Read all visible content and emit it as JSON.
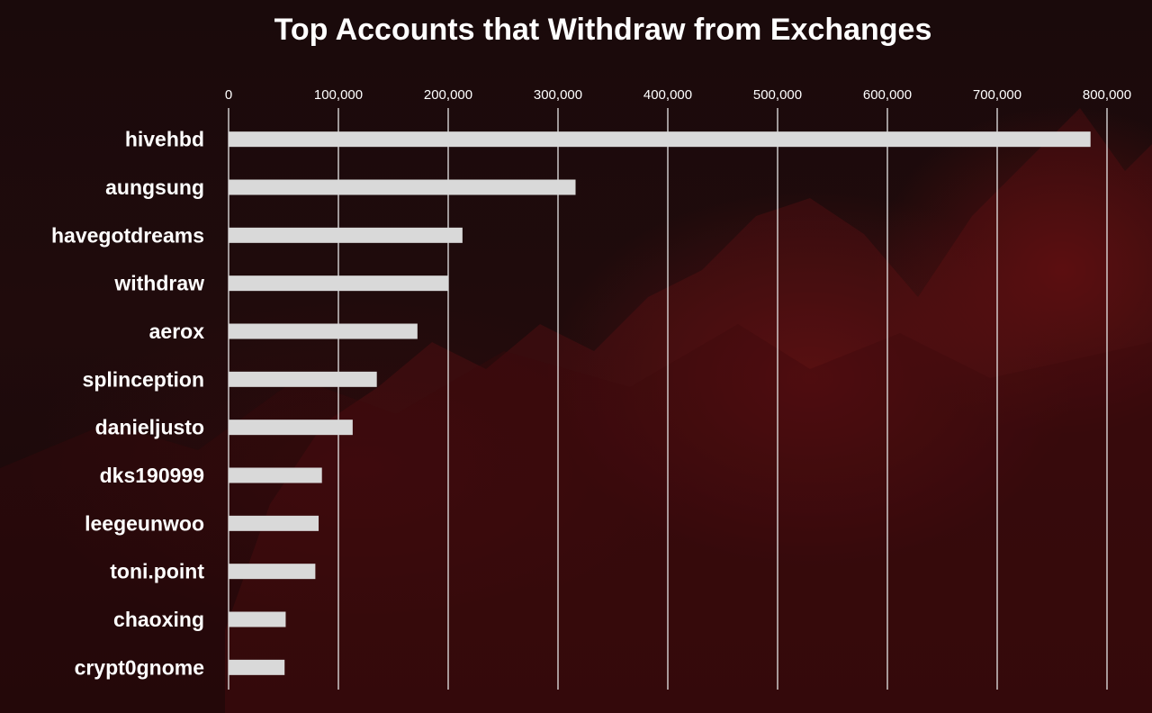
{
  "chart_data": {
    "type": "bar",
    "orientation": "horizontal",
    "title": "Top Accounts that Withdraw from Exchanges",
    "xlabel": "",
    "ylabel": "",
    "categories": [
      "hivehbd",
      "aungsung",
      "havegotdreams",
      "withdraw",
      "aerox",
      "splinception",
      "danieljusto",
      "dks190999",
      "leegeunwoo",
      "toni.point",
      "chaoxing",
      "crypt0gnome"
    ],
    "values": [
      785000,
      316000,
      213000,
      200000,
      172000,
      135000,
      113000,
      85000,
      82000,
      79000,
      52000,
      51000
    ],
    "xlim": [
      0,
      800000
    ],
    "xticks": [
      0,
      100000,
      200000,
      300000,
      400000,
      500000,
      600000,
      700000,
      800000
    ],
    "xtick_labels": [
      "0",
      "100,000",
      "200,000",
      "300,000",
      "400,000",
      "500,000",
      "600,000",
      "700,000",
      "800,000"
    ],
    "grid": true,
    "x_axis_position": "top",
    "bar_color": "#d9d9d9",
    "grid_color": "#e6e6e6"
  }
}
